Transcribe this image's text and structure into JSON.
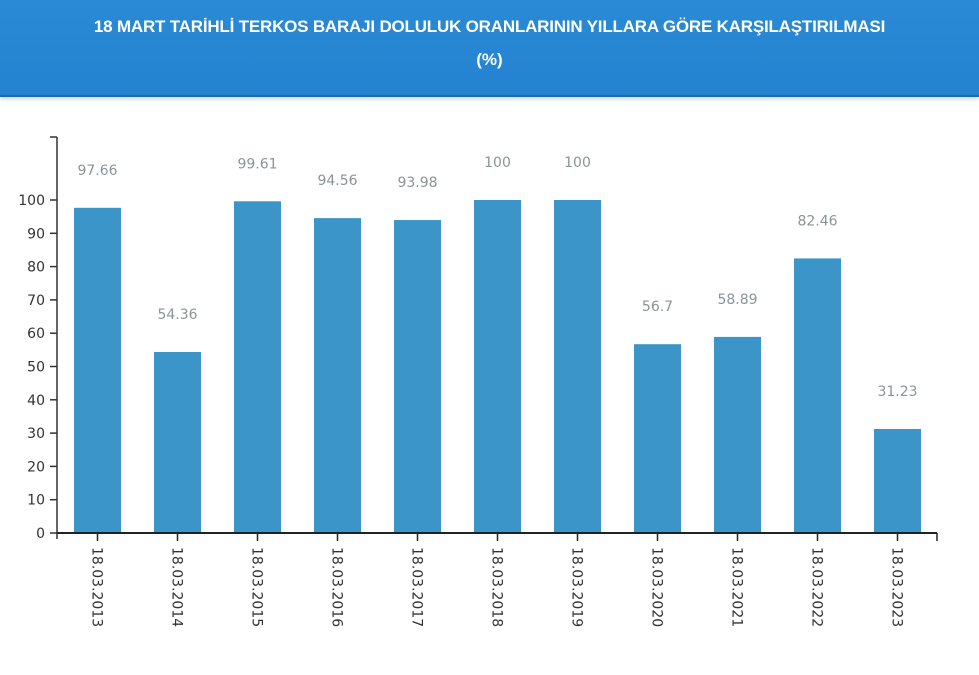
{
  "header": {
    "title": "18 MART TARİHLİ TERKOS BARAJI DOLULUK ORANLARININ YILLARA GÖRE KARŞILAŞTIRILMASI",
    "subtitle": "(%)"
  },
  "colors": {
    "header_bg": "#2383d0",
    "bar": "#3b95c8",
    "data_label": "#8a9496",
    "axis": "#333333",
    "tick_label": "#333333"
  },
  "chart_data": {
    "type": "bar",
    "title": "18 MART TARİHLİ TERKOS BARAJI DOLULUK ORANLARININ YILLARA GÖRE KARŞILAŞTIRILMASI (%)",
    "xlabel": "",
    "ylabel": "",
    "categories": [
      "18.03.2013",
      "18.03.2014",
      "18.03.2015",
      "18.03.2016",
      "18.03.2017",
      "18.03.2018",
      "18.03.2019",
      "18.03.2020",
      "18.03.2021",
      "18.03.2022",
      "18.03.2023"
    ],
    "values": [
      97.66,
      54.36,
      99.61,
      94.56,
      93.98,
      100,
      100,
      56.7,
      58.89,
      82.46,
      31.23
    ],
    "data_labels": [
      "97.66",
      "54.36",
      "99.61",
      "94.56",
      "93.98",
      "100",
      "100",
      "56.7",
      "58.89",
      "82.46",
      "31.23"
    ],
    "yticks": [
      0,
      10,
      20,
      30,
      40,
      50,
      60,
      70,
      80,
      90,
      100
    ],
    "ylim": [
      0,
      119
    ],
    "grid": false,
    "legend": null,
    "x_label_rotation": 90
  }
}
